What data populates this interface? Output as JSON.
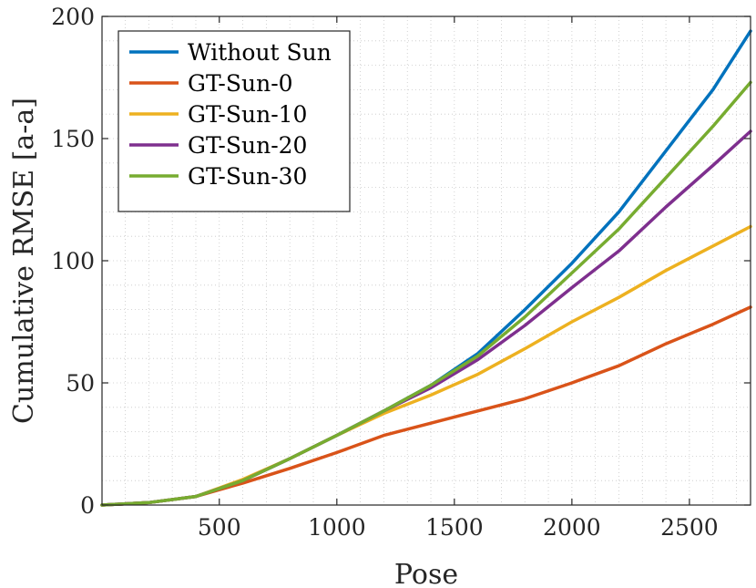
{
  "chart_data": {
    "type": "line",
    "xlabel": "Pose",
    "ylabel": "Cumulative RMSE [a-a]",
    "xlim": [
      1,
      2760
    ],
    "ylim": [
      0,
      200
    ],
    "xticks": [
      500,
      1000,
      1500,
      2000,
      2500
    ],
    "yticks": [
      0,
      50,
      100,
      150,
      200
    ],
    "grid": "minor-dotted",
    "legend_position": "top-left",
    "series": [
      {
        "name": "Without Sun",
        "color": "#0072BD",
        "x": [
          1,
          200,
          400,
          600,
          800,
          1000,
          1200,
          1400,
          1600,
          1800,
          2000,
          2200,
          2400,
          2600,
          2760
        ],
        "y": [
          0,
          1,
          3.5,
          10,
          19,
          28.5,
          38.5,
          49,
          62,
          80,
          99,
          120,
          145,
          170,
          194
        ]
      },
      {
        "name": "GT-Sun-0",
        "color": "#D95319",
        "x": [
          1,
          200,
          400,
          600,
          800,
          1000,
          1200,
          1400,
          1600,
          1800,
          2000,
          2200,
          2400,
          2600,
          2760
        ],
        "y": [
          0,
          1,
          3.5,
          9,
          15,
          21.5,
          28.5,
          33.5,
          38.5,
          43.5,
          50,
          57,
          66,
          74,
          81
        ]
      },
      {
        "name": "GT-Sun-10",
        "color": "#EDB120",
        "x": [
          1,
          200,
          400,
          600,
          800,
          1000,
          1200,
          1400,
          1600,
          1800,
          2000,
          2200,
          2400,
          2600,
          2760
        ],
        "y": [
          0,
          1,
          3.5,
          10.5,
          19,
          28.5,
          37.5,
          45,
          53.5,
          64,
          75,
          85,
          96,
          106,
          114
        ]
      },
      {
        "name": "GT-Sun-20",
        "color": "#7E2F8E",
        "x": [
          1,
          200,
          400,
          600,
          800,
          1000,
          1200,
          1400,
          1600,
          1800,
          2000,
          2200,
          2400,
          2600,
          2760
        ],
        "y": [
          0,
          1,
          3.5,
          10,
          19,
          28.5,
          38.5,
          48,
          59.5,
          73.5,
          89,
          104,
          122,
          139,
          153
        ]
      },
      {
        "name": "GT-Sun-30",
        "color": "#77AC30",
        "x": [
          1,
          200,
          400,
          600,
          800,
          1000,
          1200,
          1400,
          1600,
          1800,
          2000,
          2200,
          2400,
          2600,
          2760
        ],
        "y": [
          0,
          1,
          3.5,
          10,
          19,
          28.5,
          38.5,
          49,
          61,
          77,
          95,
          113,
          134,
          155,
          173
        ]
      }
    ]
  }
}
